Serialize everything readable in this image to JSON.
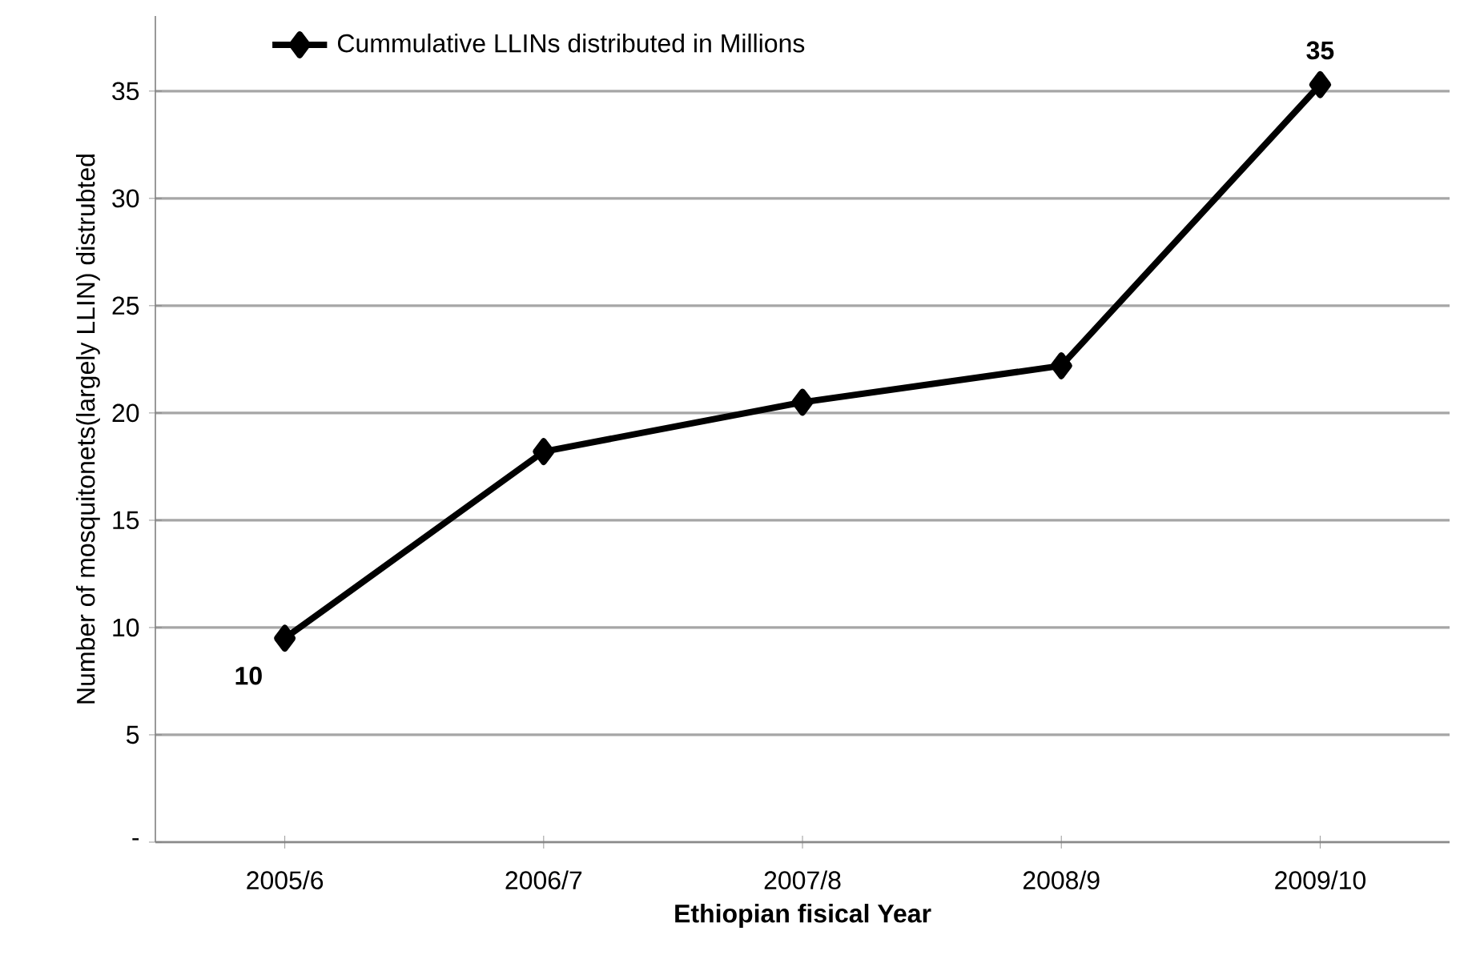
{
  "chart_data": {
    "type": "line",
    "xlabel": "Ethiopian fisical Year",
    "ylabel": "Number of mosquitonets(largely LLIN) distrubted",
    "categories": [
      "2005/6",
      "2006/7",
      "2007/8",
      "2008/9",
      "2009/10"
    ],
    "series": [
      {
        "name": "Cummulative LLINs distributed in Millions",
        "color": "#000000",
        "values": [
          9.5,
          18.2,
          20.5,
          22.2,
          35.3
        ],
        "value_labels": [
          "10",
          null,
          null,
          null,
          "35"
        ]
      }
    ],
    "ylim": [
      0,
      38.5
    ],
    "yticks": [
      {
        "value": 0,
        "label": "-"
      },
      5,
      10,
      15,
      20,
      25,
      30,
      35
    ],
    "grid": "y",
    "legend": "top left",
    "marker": "diamond",
    "line_style": "solid"
  }
}
